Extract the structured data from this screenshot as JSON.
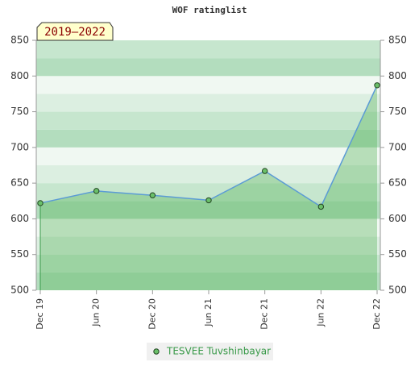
{
  "chart_data": {
    "type": "area",
    "title": "WOF ratinglist",
    "annotation": "2019–2022",
    "categories": [
      "Dec 19",
      "Jun 20",
      "Dec 20",
      "Jun 21",
      "Dec 21",
      "Jun 22",
      "Dec 22"
    ],
    "series": [
      {
        "name": "TESVEE Tuvshinbayar",
        "color": "#5b9bd5",
        "values": [
          622,
          639,
          633,
          626,
          667,
          617,
          787
        ]
      }
    ],
    "ylim": [
      500,
      850
    ],
    "yticks": [
      500,
      550,
      600,
      650,
      700,
      750,
      800,
      850
    ],
    "y2lim": [
      500,
      850
    ],
    "y2ticks": [
      500,
      550,
      600,
      650,
      700,
      750,
      800,
      850
    ],
    "legend": "bottom"
  }
}
